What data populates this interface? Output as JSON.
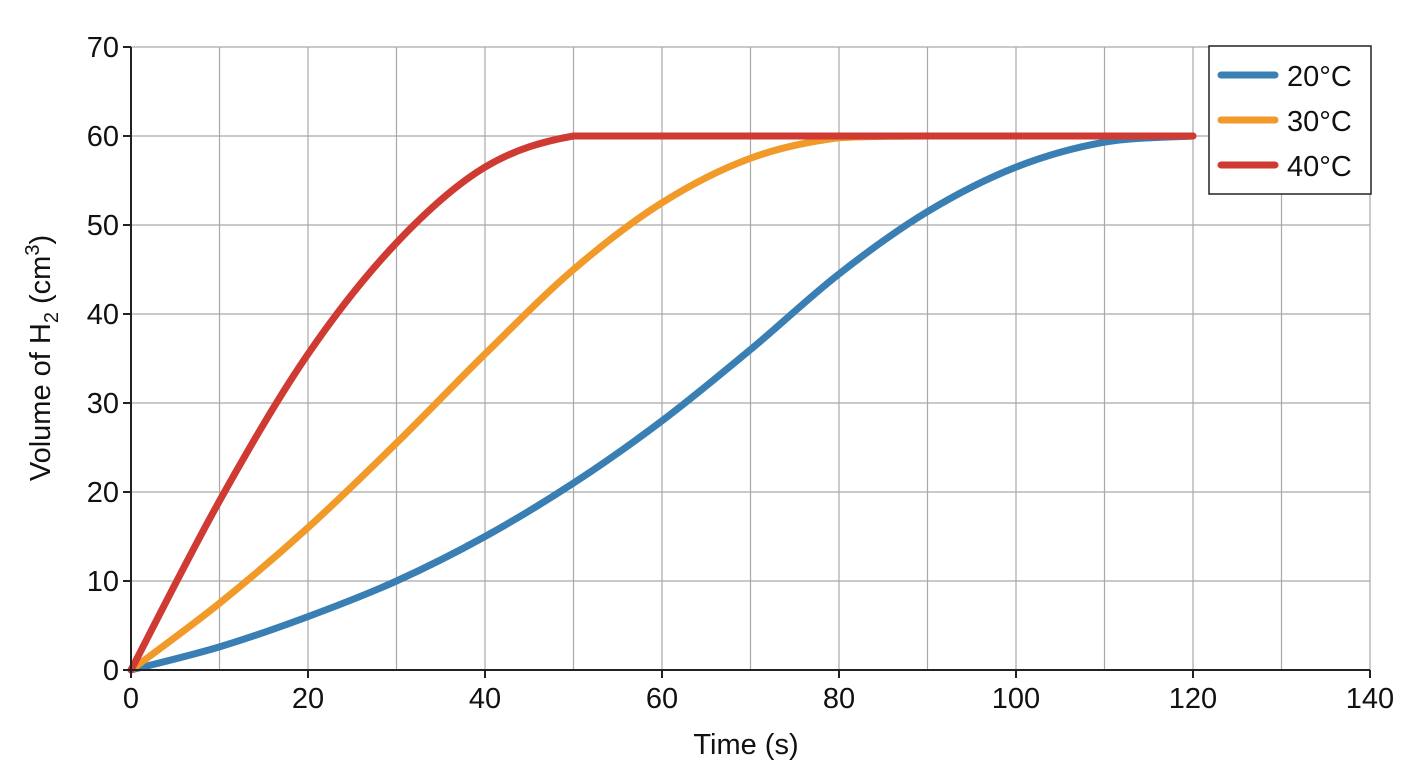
{
  "chart_data": {
    "type": "line",
    "title": "",
    "xlabel": "Time (s)",
    "ylabel": {
      "prefix": "Volume of H",
      "subscript": "2",
      "middle": " (cm",
      "superscript": "3",
      "suffix": ")"
    },
    "xlim": [
      0,
      140
    ],
    "ylim": [
      0,
      70
    ],
    "xticks": [
      0,
      20,
      40,
      60,
      80,
      100,
      120,
      140
    ],
    "yticks": [
      0,
      10,
      20,
      30,
      40,
      50,
      60,
      70
    ],
    "grid": true,
    "legend_position": "top-right",
    "series": [
      {
        "name": "20°C",
        "color": "#3a7fb4",
        "x": [
          0,
          10,
          20,
          30,
          40,
          50,
          60,
          70,
          80,
          90,
          100,
          110,
          120
        ],
        "y": [
          0,
          2.6,
          6,
          10,
          15,
          21,
          28,
          36,
          44.5,
          51.5,
          56.5,
          59.3,
          60
        ]
      },
      {
        "name": "30°C",
        "color": "#f19a2a",
        "x": [
          0,
          10,
          20,
          30,
          40,
          50,
          60,
          70,
          80,
          90,
          100,
          110,
          120
        ],
        "y": [
          0,
          7.5,
          16,
          25.5,
          35.5,
          45,
          52.5,
          57.5,
          59.8,
          60,
          60,
          60,
          60
        ]
      },
      {
        "name": "40°C",
        "color": "#cf3a33",
        "x": [
          0,
          10,
          20,
          30,
          40,
          50,
          60,
          70,
          80,
          90,
          100,
          110,
          120
        ],
        "y": [
          0,
          19,
          35.5,
          48,
          56.5,
          60,
          60,
          60,
          60,
          60,
          60,
          60,
          60
        ]
      }
    ]
  }
}
